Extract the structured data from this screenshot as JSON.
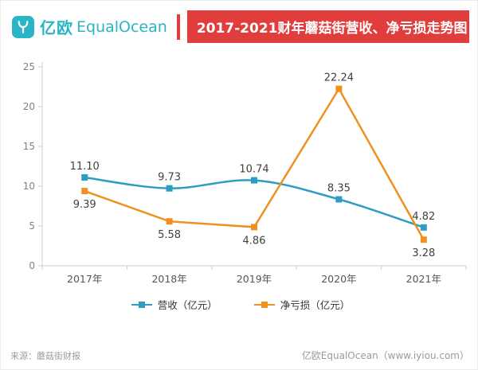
{
  "header": {
    "logo_cn": "亿欧",
    "logo_en": "EqualOcean",
    "title": "2017-2021财年蘑菇街营收、净亏损走势图"
  },
  "colors": {
    "banner_red": "#e23d3d",
    "brand_teal": "#2ab5c6",
    "revenue_blue": "#2e9dc3",
    "loss_orange": "#f0911e",
    "axis_gray": "#cccccc",
    "label_dark": "#404040"
  },
  "chart_data": {
    "type": "line",
    "title": "2017-2021财年蘑菇街营收、净亏损走势图",
    "categories": [
      "2017年",
      "2018年",
      "2019年",
      "2020年",
      "2021年"
    ],
    "series": [
      {
        "name": "营收（亿元）",
        "color": "#2e9dc3",
        "values": [
          11.1,
          9.73,
          10.74,
          8.35,
          4.82
        ],
        "smooth": true,
        "label_side": [
          "above",
          "above",
          "above",
          "above",
          "above"
        ]
      },
      {
        "name": "净亏损（亿元）",
        "color": "#f0911e",
        "values": [
          9.39,
          5.58,
          4.86,
          22.24,
          3.28
        ],
        "smooth": false,
        "label_side": [
          "below",
          "below",
          "below",
          "above",
          "below"
        ]
      }
    ],
    "ylim": [
      0,
      25
    ],
    "yticks": [
      0,
      5,
      10,
      15,
      20,
      25
    ],
    "grid": false,
    "legend_position": "bottom"
  },
  "footer": {
    "source": "来源：蘑菇街财报",
    "credit": "亿欧EqualOcean（www.iyiou.com）"
  }
}
